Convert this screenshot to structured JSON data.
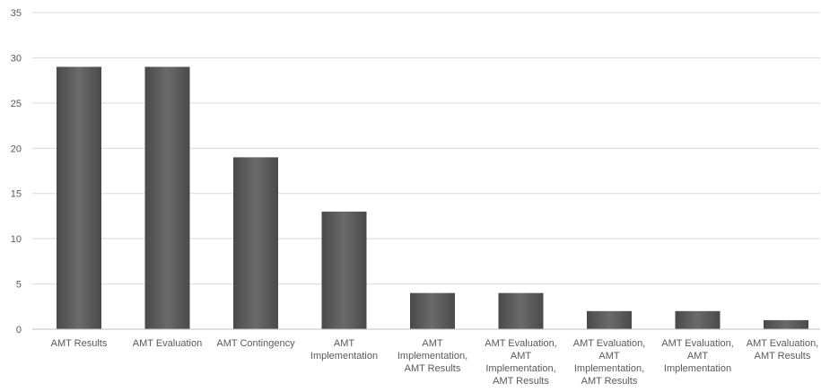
{
  "chart_data": {
    "type": "bar",
    "categories": [
      [
        "AMT Results"
      ],
      [
        "AMT Evaluation"
      ],
      [
        "AMT Contingency"
      ],
      [
        "AMT",
        "Implementation"
      ],
      [
        "AMT",
        "Implementation,",
        "AMT Results"
      ],
      [
        "AMT Evaluation,",
        "AMT",
        "Implementation,",
        "AMT Results"
      ],
      [
        "AMT Evaluation,",
        "AMT",
        "Implementation,",
        "AMT Results"
      ],
      [
        "AMT Evaluation,",
        "AMT",
        "Implementation"
      ],
      [
        "AMT Evaluation,",
        "AMT Results"
      ]
    ],
    "values": [
      29,
      29,
      19,
      13,
      4,
      4,
      2,
      2,
      1
    ],
    "ylim": [
      0,
      35
    ],
    "yticks": [
      0,
      5,
      10,
      15,
      20,
      25,
      30,
      35
    ],
    "grid": true,
    "bar_color": "#5a5a5a"
  }
}
